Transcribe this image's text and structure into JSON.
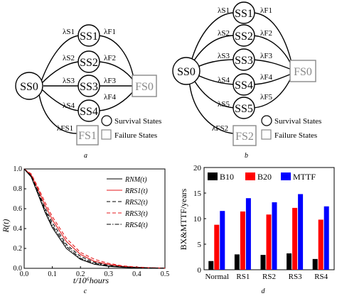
{
  "panel_a": {
    "caption": "a",
    "nodes": {
      "ss0": "SS0",
      "ss1": "SS1",
      "ss2": "SS2",
      "ss3": "SS3",
      "ss4": "SS4",
      "fs0": "FS0",
      "fs1": "FS1"
    },
    "rates_left": [
      "λS1",
      "λS2",
      "λS3",
      "λS4",
      "λFS1"
    ],
    "rates_right": [
      "λF1",
      "λF2",
      "λF3",
      "λF4"
    ],
    "legend": {
      "survival": "Survival States",
      "failure": "Failure States"
    }
  },
  "panel_b": {
    "caption": "b",
    "nodes": {
      "ss0": "SS0",
      "ss1": "SS1",
      "ss2": "SS2",
      "ss3": "SS3",
      "ss4": "SS4",
      "ss5": "SS5",
      "fs0": "FS0",
      "fs2": "FS2"
    },
    "rates_left": [
      "λS1",
      "λS2",
      "λS3",
      "λS4",
      "λS5",
      "λFS2"
    ],
    "rates_right": [
      "λF1",
      "λF2",
      "λF3",
      "λF4",
      "λF5"
    ],
    "legend": {
      "survival": "Survival States",
      "failure": "Failure States"
    }
  },
  "chart_data": [
    {
      "type": "line",
      "caption": "c",
      "xlabel": "t/10⁶hours",
      "ylabel": "R(t)",
      "xlim": [
        0,
        0.5
      ],
      "ylim": [
        0,
        1.0
      ],
      "xticks": [
        "0.0",
        "0.1",
        "0.2",
        "0.3",
        "0.4",
        "0.5"
      ],
      "yticks": [
        "0.0",
        "0.2",
        "0.4",
        "0.6",
        "0.8",
        "1.0"
      ],
      "legend_position": "top-right",
      "x": [
        0,
        0.025,
        0.05,
        0.075,
        0.1,
        0.15,
        0.2,
        0.25,
        0.3,
        0.35,
        0.4,
        0.45,
        0.5
      ],
      "series": [
        {
          "name": "RNM(t)",
          "color": "#000000",
          "dash": "solid",
          "values": [
            1.0,
            0.92,
            0.74,
            0.56,
            0.41,
            0.2,
            0.09,
            0.04,
            0.02,
            0.01,
            0.005,
            0.002,
            0.0
          ]
        },
        {
          "name": "RRS1(t)",
          "color": "#e41a1c",
          "dash": "solid",
          "values": [
            1.0,
            0.94,
            0.79,
            0.63,
            0.49,
            0.27,
            0.14,
            0.07,
            0.04,
            0.02,
            0.01,
            0.005,
            0.002
          ]
        },
        {
          "name": "RRS2(t)",
          "color": "#000000",
          "dash": "dashed",
          "values": [
            1.0,
            0.93,
            0.77,
            0.6,
            0.46,
            0.24,
            0.12,
            0.06,
            0.03,
            0.015,
            0.008,
            0.004,
            0.002
          ]
        },
        {
          "name": "RRS3(t)",
          "color": "#e41a1c",
          "dash": "dashed",
          "values": [
            1.0,
            0.95,
            0.81,
            0.66,
            0.52,
            0.3,
            0.16,
            0.09,
            0.05,
            0.025,
            0.013,
            0.006,
            0.003
          ]
        },
        {
          "name": "RRS4(t)",
          "color": "#000000",
          "dash": "dashdot",
          "values": [
            1.0,
            0.925,
            0.755,
            0.58,
            0.43,
            0.22,
            0.1,
            0.05,
            0.025,
            0.012,
            0.006,
            0.003,
            0.001
          ]
        }
      ]
    },
    {
      "type": "bar",
      "caption": "d",
      "ylabel": "BX&MTTF/years",
      "ylim": [
        0,
        20
      ],
      "yticks": [
        "0",
        "5",
        "10",
        "15",
        "20"
      ],
      "categories": [
        "Normal",
        "RS1",
        "RS2",
        "RS3",
        "RS4"
      ],
      "legend_position": "top",
      "series": [
        {
          "name": "B10",
          "color": "#000000",
          "values": [
            1.7,
            3.0,
            2.9,
            3.2,
            2.1
          ]
        },
        {
          "name": "B20",
          "color": "#ff0000",
          "values": [
            8.8,
            11.4,
            10.8,
            12.1,
            9.8
          ]
        },
        {
          "name": "MTTF",
          "color": "#0000ff",
          "values": [
            11.5,
            14.0,
            13.2,
            14.8,
            12.4
          ]
        }
      ]
    }
  ]
}
